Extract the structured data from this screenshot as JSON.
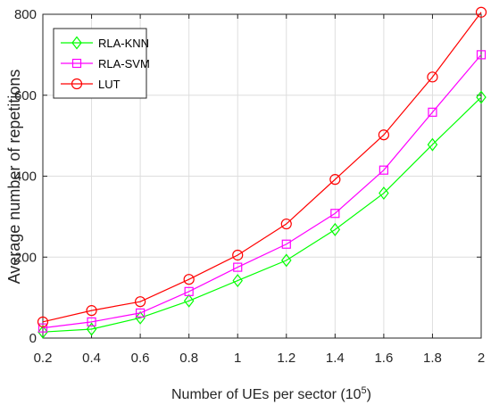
{
  "chart_data": {
    "type": "line",
    "title": "",
    "xlabel": "Number of UEs per sector (10",
    "xlabel_exponent": "5",
    "xlabel_suffix": ")",
    "ylabel": "Average number of repetitions",
    "x": [
      0.2,
      0.4,
      0.6,
      0.8,
      1.0,
      1.2,
      1.4,
      1.6,
      1.8,
      2.0
    ],
    "xlim": [
      0.2,
      2.0
    ],
    "ylim": [
      0,
      800
    ],
    "xticks": [
      "0.2",
      "0.4",
      "0.6",
      "0.8",
      "1",
      "1.2",
      "1.4",
      "1.6",
      "1.8",
      "2"
    ],
    "yticks": [
      "0",
      "200",
      "400",
      "600",
      "800"
    ],
    "grid": true,
    "legend_position": "top-left",
    "series": [
      {
        "name": "RLA-KNN",
        "color": "#00ff00",
        "marker": "diamond",
        "values": [
          15,
          22,
          50,
          92,
          142,
          192,
          268,
          358,
          478,
          595
        ]
      },
      {
        "name": "RLA-SVM",
        "color": "#ff00ff",
        "marker": "square",
        "values": [
          25,
          40,
          62,
          115,
          175,
          232,
          308,
          415,
          558,
          700
        ]
      },
      {
        "name": "LUT",
        "color": "#ff0000",
        "marker": "circle",
        "values": [
          40,
          68,
          90,
          145,
          205,
          282,
          392,
          502,
          645,
          805
        ]
      }
    ]
  }
}
